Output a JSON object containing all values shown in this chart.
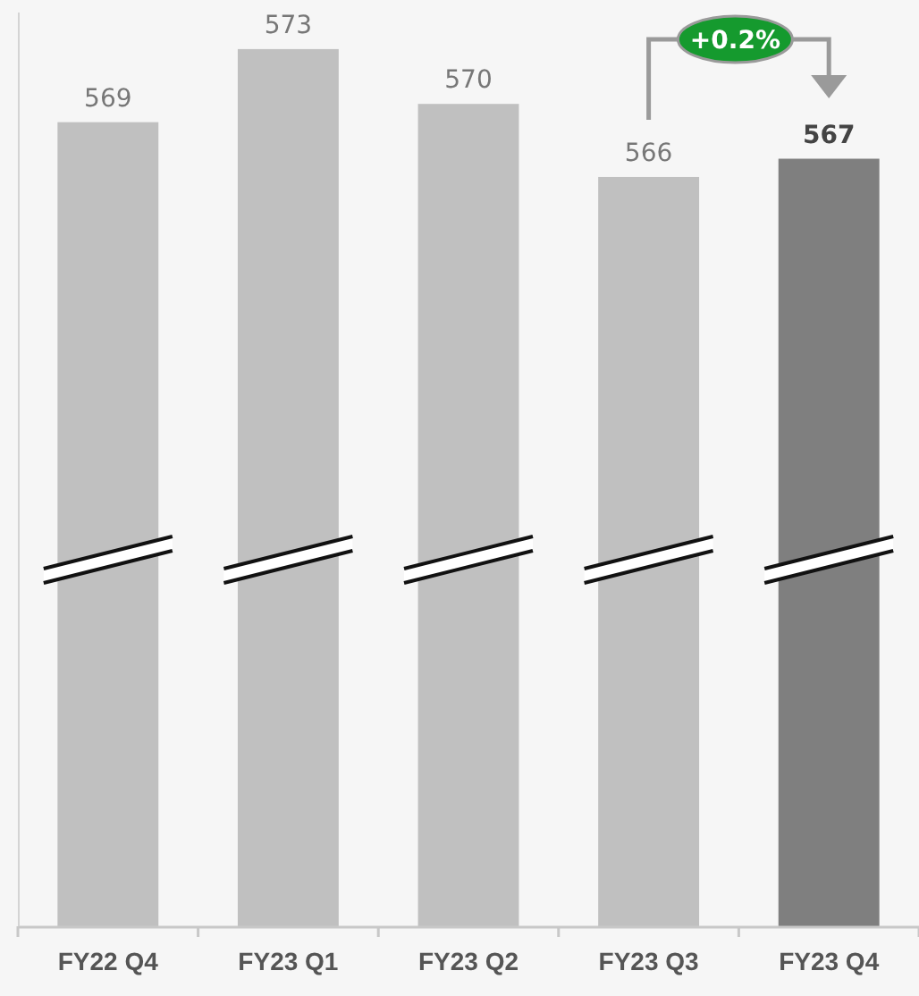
{
  "chart_data": {
    "type": "bar",
    "categories": [
      "FY22 Q4",
      "FY23 Q1",
      "FY23 Q2",
      "FY23 Q3",
      "FY23 Q4"
    ],
    "values": [
      569,
      573,
      570,
      566,
      567
    ],
    "colors": [
      "#c0c0c0",
      "#c0c0c0",
      "#c0c0c0",
      "#c0c0c0",
      "#7f7f7f"
    ],
    "ylim": [
      525,
      575
    ],
    "tick_labels": "x",
    "data_labels": true,
    "annotations": [
      "+0.2%"
    ]
  }
}
